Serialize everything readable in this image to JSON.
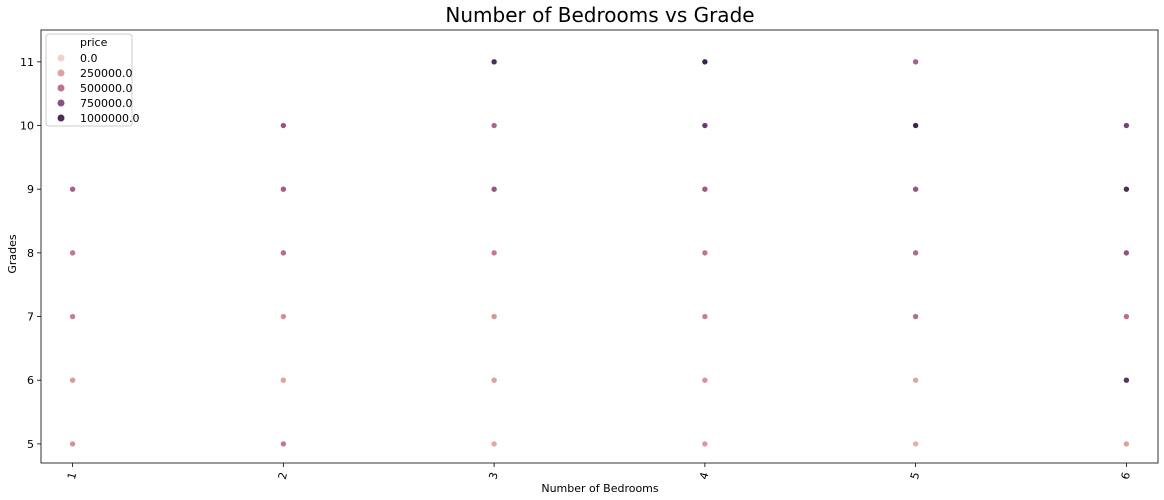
{
  "chart_data": {
    "type": "scatter",
    "title": "Number of Bedrooms vs Grade",
    "xlabel": "Number of Bedrooms",
    "ylabel": "Grades",
    "x_ticks": [
      "1",
      "2",
      "3",
      "4",
      "5",
      "6"
    ],
    "y_ticks": [
      "5",
      "6",
      "7",
      "8",
      "9",
      "10",
      "11"
    ],
    "xlim": [
      0.85,
      6.15
    ],
    "ylim": [
      4.7,
      11.5
    ],
    "legend": {
      "title": "price",
      "position": "top-left",
      "entries": [
        {
          "label": "0.0",
          "value": 0
        },
        {
          "label": "250000.0",
          "value": 250000
        },
        {
          "label": "500000.0",
          "value": 500000
        },
        {
          "label": "750000.0",
          "value": 750000
        },
        {
          "label": "1000000.0",
          "value": 1000000
        }
      ]
    },
    "hue_range": [
      0,
      1100000
    ],
    "colors": [
      "#f0d4cc",
      "#e3a9a2",
      "#c97b8e",
      "#a05a8a",
      "#6e3e73",
      "#2d1e3e"
    ],
    "points": [
      {
        "x": 1,
        "y": 5,
        "price": 330000
      },
      {
        "x": 1,
        "y": 6,
        "price": 290000
      },
      {
        "x": 1,
        "y": 7,
        "price": 430000
      },
      {
        "x": 1,
        "y": 8,
        "price": 470000
      },
      {
        "x": 1,
        "y": 9,
        "price": 620000
      },
      {
        "x": 2,
        "y": 5,
        "price": 470000
      },
      {
        "x": 2,
        "y": 6,
        "price": 250000
      },
      {
        "x": 2,
        "y": 7,
        "price": 350000
      },
      {
        "x": 2,
        "y": 8,
        "price": 540000
      },
      {
        "x": 2,
        "y": 9,
        "price": 640000
      },
      {
        "x": 2,
        "y": 10,
        "price": 700000
      },
      {
        "x": 3,
        "y": 5,
        "price": 230000
      },
      {
        "x": 3,
        "y": 6,
        "price": 270000
      },
      {
        "x": 3,
        "y": 7,
        "price": 310000
      },
      {
        "x": 3,
        "y": 8,
        "price": 460000
      },
      {
        "x": 3,
        "y": 9,
        "price": 700000
      },
      {
        "x": 3,
        "y": 10,
        "price": 590000
      },
      {
        "x": 3,
        "y": 11,
        "price": 1000000
      },
      {
        "x": 4,
        "y": 5,
        "price": 300000
      },
      {
        "x": 4,
        "y": 6,
        "price": 320000
      },
      {
        "x": 4,
        "y": 7,
        "price": 430000
      },
      {
        "x": 4,
        "y": 8,
        "price": 480000
      },
      {
        "x": 4,
        "y": 9,
        "price": 660000
      },
      {
        "x": 4,
        "y": 10,
        "price": 900000
      },
      {
        "x": 4,
        "y": 11,
        "price": 1050000
      },
      {
        "x": 5,
        "y": 5,
        "price": 190000
      },
      {
        "x": 5,
        "y": 6,
        "price": 240000
      },
      {
        "x": 5,
        "y": 7,
        "price": 540000
      },
      {
        "x": 5,
        "y": 8,
        "price": 560000
      },
      {
        "x": 5,
        "y": 9,
        "price": 700000
      },
      {
        "x": 5,
        "y": 10,
        "price": 1050000
      },
      {
        "x": 5,
        "y": 11,
        "price": 620000
      },
      {
        "x": 6,
        "y": 5,
        "price": 260000
      },
      {
        "x": 6,
        "y": 6,
        "price": 950000
      },
      {
        "x": 6,
        "y": 7,
        "price": 520000
      },
      {
        "x": 6,
        "y": 8,
        "price": 720000
      },
      {
        "x": 6,
        "y": 9,
        "price": 1000000
      },
      {
        "x": 6,
        "y": 10,
        "price": 840000
      }
    ]
  }
}
